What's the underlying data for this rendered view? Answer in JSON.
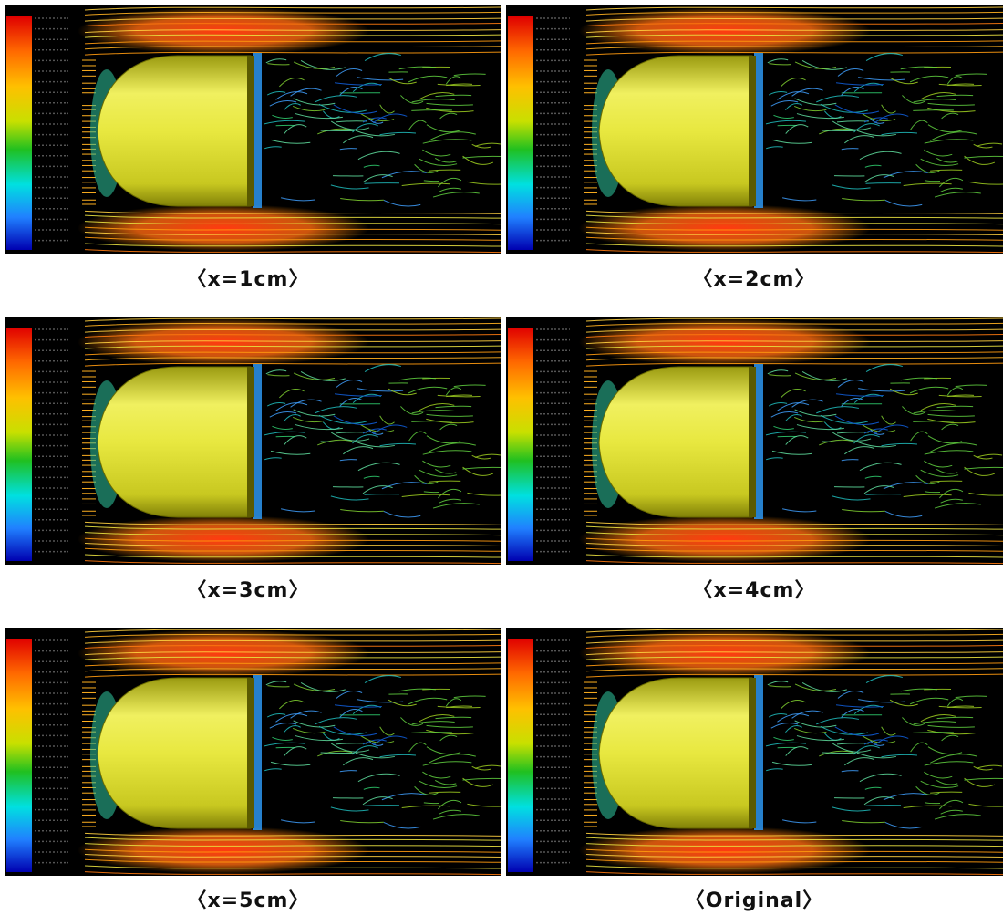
{
  "panels": [
    {
      "caption": "〈x=1cm〉"
    },
    {
      "caption": "〈x=2cm〉"
    },
    {
      "caption": "〈x=3cm〉"
    },
    {
      "caption": "〈x=4cm〉"
    },
    {
      "caption": "〈x=5cm〉"
    },
    {
      "caption": "〈Original〉"
    }
  ]
}
